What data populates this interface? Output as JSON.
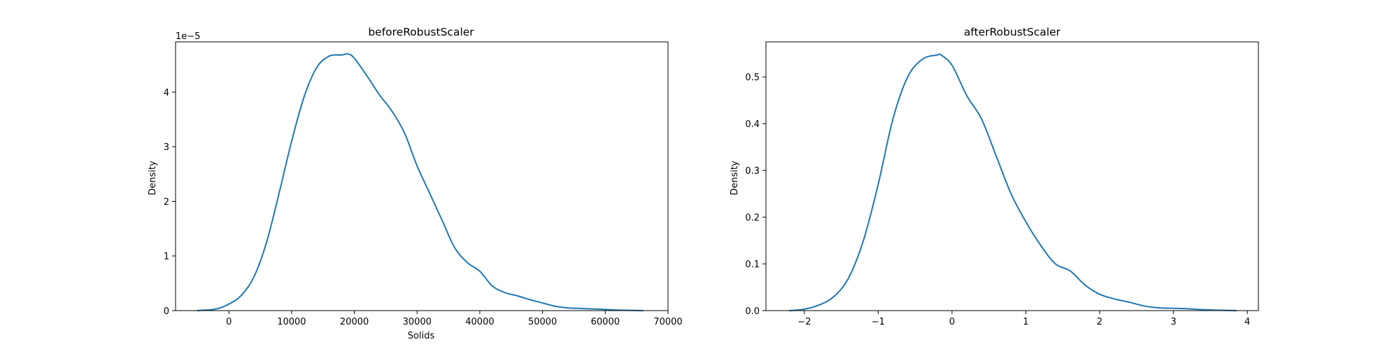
{
  "chart_data": [
    {
      "type": "line",
      "title": "beforeRobustScaler",
      "xlabel": "Solids",
      "ylabel": "Density",
      "y_offset_label": "1e−5",
      "y_scale": 1e-05,
      "xlim": [
        -8500,
        70000
      ],
      "ylim": [
        0,
        4.92
      ],
      "xticks": [
        0,
        10000,
        20000,
        30000,
        40000,
        50000,
        60000,
        70000
      ],
      "xtick_labels": [
        "0",
        "10000",
        "20000",
        "30000",
        "40000",
        "50000",
        "60000",
        "70000"
      ],
      "yticks": [
        0,
        1,
        2,
        3,
        4
      ],
      "ytick_labels": [
        "0",
        "1",
        "2",
        "3",
        "4"
      ],
      "grid": false,
      "color": "#1f77b4",
      "series": [
        {
          "x": [
            -5000,
            -2000,
            0,
            2000,
            4000,
            6000,
            8000,
            10000,
            12000,
            14000,
            16000,
            18000,
            19000,
            20000,
            22000,
            24000,
            26000,
            28000,
            30000,
            32000,
            34000,
            36000,
            38000,
            40000,
            42000,
            44000,
            46000,
            48000,
            50000,
            52000,
            54000,
            56000,
            58000,
            60000,
            62000,
            64000,
            66000
          ],
          "y": [
            0.0,
            0.03,
            0.12,
            0.28,
            0.62,
            1.25,
            2.15,
            3.1,
            3.92,
            4.45,
            4.66,
            4.68,
            4.7,
            4.62,
            4.3,
            3.95,
            3.65,
            3.25,
            2.65,
            2.15,
            1.65,
            1.15,
            0.88,
            0.72,
            0.45,
            0.33,
            0.27,
            0.2,
            0.14,
            0.08,
            0.05,
            0.04,
            0.03,
            0.02,
            0.01,
            0.005,
            0.0
          ]
        }
      ]
    },
    {
      "type": "line",
      "title": "afterRobustScaler",
      "xlabel": "",
      "ylabel": "Density",
      "xlim": [
        -2.52,
        4.15
      ],
      "ylim": [
        0,
        0.575
      ],
      "xticks": [
        -2,
        -1,
        0,
        1,
        2,
        3,
        4
      ],
      "xtick_labels": [
        "−2",
        "−1",
        "0",
        "1",
        "2",
        "3",
        "4"
      ],
      "yticks": [
        0.0,
        0.1,
        0.2,
        0.3,
        0.4,
        0.5
      ],
      "ytick_labels": [
        "0.0",
        "0.1",
        "0.2",
        "0.3",
        "0.4",
        "0.5"
      ],
      "grid": false,
      "color": "#1f77b4",
      "series": [
        {
          "x": [
            -2.2,
            -2.0,
            -1.8,
            -1.6,
            -1.4,
            -1.2,
            -1.0,
            -0.8,
            -0.6,
            -0.4,
            -0.2,
            -0.15,
            0.0,
            0.2,
            0.4,
            0.6,
            0.8,
            1.0,
            1.2,
            1.4,
            1.6,
            1.8,
            2.0,
            2.2,
            2.4,
            2.6,
            2.8,
            3.0,
            3.2,
            3.4,
            3.6,
            3.85
          ],
          "y": [
            0.0,
            0.003,
            0.012,
            0.03,
            0.07,
            0.15,
            0.27,
            0.41,
            0.5,
            0.538,
            0.547,
            0.547,
            0.525,
            0.46,
            0.41,
            0.33,
            0.25,
            0.19,
            0.14,
            0.1,
            0.085,
            0.055,
            0.035,
            0.025,
            0.018,
            0.01,
            0.006,
            0.005,
            0.004,
            0.002,
            0.001,
            0.0
          ]
        }
      ]
    }
  ]
}
